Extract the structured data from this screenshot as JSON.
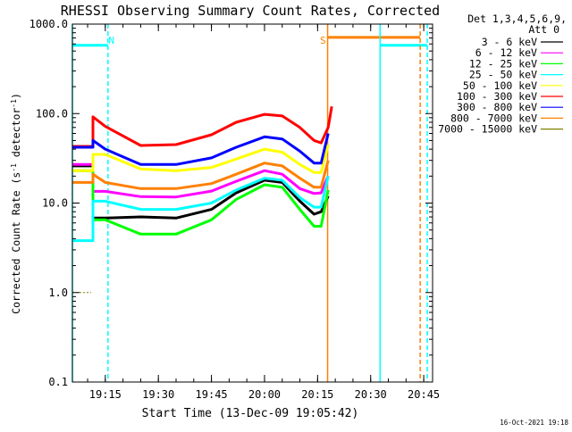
{
  "chart_data": {
    "type": "line",
    "title": "RHESSI Observing Summary Count Rates, Corrected",
    "xlabel": "Start Time (13-Dec-09 19:05:42)",
    "ylabel": "Corrected Count Rate (s⁻¹ detector⁻¹)",
    "ylabel_main": "Corrected Count Rate (s",
    "ylabel_sup1": "-1",
    "ylabel_mid": " detector",
    "ylabel_sup2": "-1",
    "ylabel_end": ")",
    "yscale": "log",
    "ylim": [
      0.1,
      1000
    ],
    "xlim": [
      "19:05:42",
      "20:47:30"
    ],
    "grid": false,
    "legend_position": "top-right",
    "legend_header": [
      "Det 1,3,4,5,6,9,",
      "Att 0"
    ],
    "x_ticks": [
      "19:15",
      "19:30",
      "19:45",
      "20:00",
      "20:15",
      "20:30",
      "20:45"
    ],
    "y_ticks": [
      "1000.0",
      "100.0",
      "10.0",
      "1.0",
      "0.1"
    ],
    "timestamp": "16-Oct-2021 19:18",
    "series": [
      {
        "name": "3 - 6 keV",
        "color": "#000000",
        "x": [
          "19:05:42",
          "19:11:30",
          "19:11:30",
          "19:15",
          "19:25",
          "19:35",
          "19:45",
          "19:52",
          "20:00",
          "20:05",
          "20:10",
          "20:14",
          "20:16",
          "20:18"
        ],
        "values": [
          26,
          26,
          6.8,
          6.8,
          7.0,
          6.8,
          8.5,
          13.0,
          18.0,
          17.0,
          10.5,
          7.5,
          8.0,
          12
        ]
      },
      {
        "name": "6 - 12 keV",
        "color": "#ff00ff",
        "x": [
          "19:05:42",
          "19:11:30",
          "19:11:30",
          "19:15",
          "19:25",
          "19:35",
          "19:45",
          "19:52",
          "20:00",
          "20:05",
          "20:10",
          "20:14",
          "20:16",
          "20:18"
        ],
        "values": [
          27,
          27,
          13.5,
          13.5,
          11.8,
          11.7,
          13.6,
          17.5,
          23.0,
          21.0,
          14.5,
          12.8,
          13.0,
          20
        ]
      },
      {
        "name": "12 - 25 keV",
        "color": "#00ff00",
        "x": [
          "19:05:42",
          "19:11:30",
          "19:11:30",
          "19:15",
          "19:25",
          "19:35",
          "19:45",
          "19:52",
          "20:00",
          "20:05",
          "20:10",
          "20:14",
          "20:16",
          "20:18"
        ],
        "values": [
          23,
          23,
          6.5,
          6.5,
          4.5,
          4.5,
          6.5,
          11.0,
          16.0,
          15.0,
          8.5,
          5.5,
          5.5,
          14
        ]
      },
      {
        "name": "25 - 50 keV",
        "color": "#00ffff",
        "x": [
          "19:05:42",
          "19:11:30",
          "19:11:30",
          "19:15",
          "19:25",
          "19:35",
          "19:45",
          "19:52",
          "20:00",
          "20:05",
          "20:10",
          "20:14",
          "20:16",
          "20:18"
        ],
        "values": [
          3.8,
          3.8,
          10.5,
          10.5,
          8.5,
          8.5,
          10.0,
          14.0,
          19.0,
          18.0,
          11.5,
          9.0,
          9.0,
          20
        ]
      },
      {
        "name": "50 - 100 keV",
        "color": "#ffff00",
        "x": [
          "19:05:42",
          "19:11:30",
          "19:11:30",
          "19:15",
          "19:25",
          "19:35",
          "19:45",
          "19:52",
          "20:00",
          "20:05",
          "20:10",
          "20:14",
          "20:16",
          "20:18"
        ],
        "values": [
          23,
          23,
          35,
          35,
          24,
          23,
          25,
          31,
          40,
          37,
          27,
          22,
          22,
          45
        ]
      },
      {
        "name": "100 - 300 keV",
        "color": "#ff0000",
        "x": [
          "19:05:42",
          "19:11:30",
          "19:11:30",
          "19:15",
          "19:25",
          "19:35",
          "19:45",
          "19:52",
          "20:00",
          "20:05",
          "20:10",
          "20:14",
          "20:16",
          "20:18",
          "20:19"
        ],
        "values": [
          43,
          43,
          92,
          72,
          44,
          45,
          58,
          80,
          98,
          94,
          70,
          50,
          47,
          70,
          120
        ]
      },
      {
        "name": "300 - 800 keV",
        "color": "#0000ff",
        "x": [
          "19:05:42",
          "19:11:30",
          "19:11:30",
          "19:15",
          "19:25",
          "19:35",
          "19:45",
          "19:52",
          "20:00",
          "20:05",
          "20:10",
          "20:14",
          "20:16",
          "20:18"
        ],
        "values": [
          42,
          42,
          50,
          40,
          27,
          27,
          32,
          42,
          55,
          52,
          38,
          28,
          28,
          60
        ]
      },
      {
        "name": "800 - 7000 keV",
        "color": "#ff8000",
        "x": [
          "19:05:42",
          "19:11:30",
          "19:11:30",
          "19:15",
          "19:25",
          "19:35",
          "19:45",
          "19:52",
          "20:00",
          "20:05",
          "20:10",
          "20:14",
          "20:16",
          "20:18"
        ],
        "values": [
          17,
          17,
          21,
          17,
          14.5,
          14.5,
          16.5,
          21,
          28,
          26,
          19,
          15,
          15,
          30
        ]
      },
      {
        "name": "7000 - 15000 keV",
        "color": "#808000",
        "x": [
          "19:05:42",
          "19:11:00"
        ],
        "values": [
          1.0,
          1.0
        ]
      }
    ],
    "annotations": [
      {
        "text": "N",
        "color": "#00ffff",
        "x": "19:16:45",
        "y": 600
      },
      {
        "text": "S",
        "color": "#ff8000",
        "x": "20:16:30",
        "y": 600
      }
    ],
    "event_bars": [
      {
        "label": "night",
        "color": "#00ffff",
        "x_start": "19:05:42",
        "x_end": "19:15:45",
        "y": 580
      },
      {
        "label": "saa",
        "color": "#ff8000",
        "x_start": "20:17:50",
        "x_end": "20:44:00",
        "y": 710
      },
      {
        "label": "night",
        "color": "#00ffff",
        "x_start": "20:32:40",
        "x_end": "20:46:00",
        "y": 580
      }
    ],
    "vertical_lines": [
      {
        "label": "night-start",
        "x": "19:05:42",
        "color": "#00ffff",
        "style": "solid"
      },
      {
        "label": "night-end",
        "x": "19:15:45",
        "color": "#00ffff",
        "style": "dashed"
      },
      {
        "label": "saa-start",
        "x": "20:17:50",
        "color": "#ff8000",
        "style": "solid"
      },
      {
        "label": "night-start-2",
        "x": "20:32:40",
        "color": "#00ffff",
        "style": "solid"
      },
      {
        "label": "saa-end",
        "x": "20:44:00",
        "color": "#ff8000",
        "style": "dashed"
      },
      {
        "label": "night-end-2",
        "x": "20:46:00",
        "color": "#00ffff",
        "style": "dashed"
      }
    ],
    "colors": {
      "background": "#ffffff",
      "axes": "#000000",
      "text": "#000000"
    }
  }
}
